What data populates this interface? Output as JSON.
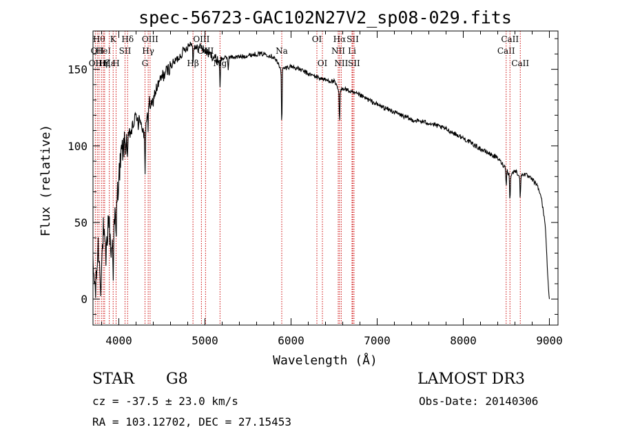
{
  "chart_data": {
    "type": "line",
    "title": "spec-56723-GAC102N27V2_sp08-029.fits",
    "xlabel": "Wavelength (Å)",
    "ylabel": "Flux (relative)",
    "xlim": [
      3700,
      9100
    ],
    "ylim": [
      -17,
      175
    ],
    "xticks": [
      4000,
      5000,
      6000,
      7000,
      8000,
      9000
    ],
    "yticks": [
      0,
      50,
      100,
      150
    ],
    "line_color": "#000000",
    "marker_color": "#cc0000",
    "spectrum_anchors": {
      "x": [
        3700,
        3730,
        3760,
        3790,
        3820,
        3850,
        3880,
        3910,
        3940,
        3970,
        4000,
        4030,
        4060,
        4100,
        4150,
        4200,
        4250,
        4300,
        4340,
        4380,
        4420,
        4460,
        4500,
        4550,
        4600,
        4650,
        4700,
        4750,
        4800,
        4850,
        4900,
        4950,
        5000,
        5050,
        5100,
        5150,
        5200,
        5300,
        5400,
        5500,
        5600,
        5700,
        5800,
        5890,
        6000,
        6100,
        6200,
        6300,
        6400,
        6500,
        6563,
        6600,
        6700,
        6800,
        6900,
        7000,
        7200,
        7400,
        7600,
        7800,
        8000,
        8200,
        8400,
        8500,
        8542,
        8600,
        8662,
        8700,
        8800,
        8850,
        8900,
        8950,
        8990,
        9000
      ],
      "y": [
        20,
        5,
        35,
        10,
        45,
        25,
        55,
        30,
        45,
        60,
        80,
        95,
        100,
        105,
        110,
        120,
        118,
        105,
        130,
        125,
        135,
        140,
        145,
        148,
        152,
        155,
        158,
        162,
        165,
        168,
        163,
        165,
        162,
        160,
        158,
        156,
        157,
        158,
        158,
        159,
        160,
        160,
        158,
        150,
        152,
        150,
        147,
        145,
        143,
        142,
        135,
        138,
        135,
        133,
        130,
        127,
        122,
        117,
        115,
        111,
        105,
        98,
        92,
        85,
        80,
        84,
        80,
        82,
        78,
        75,
        68,
        50,
        5,
        0
      ]
    },
    "absorption_dips": [
      {
        "x": 3934,
        "depth": 25
      },
      {
        "x": 3968,
        "depth": 25
      },
      {
        "x": 4102,
        "depth": 15
      },
      {
        "x": 4227,
        "depth": 12
      },
      {
        "x": 4305,
        "depth": 30
      },
      {
        "x": 4340,
        "depth": 20
      },
      {
        "x": 4861,
        "depth": 15
      },
      {
        "x": 5175,
        "depth": 20
      },
      {
        "x": 5270,
        "depth": 8
      },
      {
        "x": 5892,
        "depth": 40
      },
      {
        "x": 6563,
        "depth": 22
      },
      {
        "x": 8498,
        "depth": 12
      },
      {
        "x": 8542,
        "depth": 18
      },
      {
        "x": 8662,
        "depth": 16
      }
    ],
    "line_markers": [
      {
        "x": 3727,
        "label": "OII",
        "row": 2
      },
      {
        "x": 3750,
        "label": "OII",
        "row": 1
      },
      {
        "x": 3770,
        "label": "Hθ",
        "row": 0
      },
      {
        "x": 3798,
        "label": "Hη",
        "row": 2
      },
      {
        "x": 3820,
        "label": "HeI",
        "row": 1
      },
      {
        "x": 3835,
        "label": "Hζ",
        "row": 2
      },
      {
        "x": 3889,
        "label": "Hε",
        "row": 2
      },
      {
        "x": 3934,
        "label": "K",
        "row": 0
      },
      {
        "x": 3968,
        "label": "H",
        "row": 2
      },
      {
        "x": 4072,
        "label": "SII",
        "row": 1
      },
      {
        "x": 4102,
        "label": "Hδ",
        "row": 0
      },
      {
        "x": 4304,
        "label": "G",
        "row": 2
      },
      {
        "x": 4341,
        "label": "Hγ",
        "row": 1
      },
      {
        "x": 4363,
        "label": "OIII",
        "row": 0
      },
      {
        "x": 4861,
        "label": "Hβ",
        "row": 2
      },
      {
        "x": 4959,
        "label": "OIII",
        "row": 0
      },
      {
        "x": 5007,
        "label": "OIII",
        "row": 1
      },
      {
        "x": 5175,
        "label": "Mg",
        "row": 2
      },
      {
        "x": 5892,
        "label": "Na",
        "row": 1
      },
      {
        "x": 6300,
        "label": "OI",
        "row": 0
      },
      {
        "x": 6364,
        "label": "OI",
        "row": 2
      },
      {
        "x": 6548,
        "label": "NII",
        "row": 1
      },
      {
        "x": 6563,
        "label": "Hα",
        "row": 0
      },
      {
        "x": 6583,
        "label": "NII",
        "row": 2
      },
      {
        "x": 6708,
        "label": "Li",
        "row": 1
      },
      {
        "x": 6716,
        "label": "SII",
        "row": 0
      },
      {
        "x": 6731,
        "label": "SII",
        "row": 2
      },
      {
        "x": 8498,
        "label": "CaII",
        "row": 1
      },
      {
        "x": 8542,
        "label": "CaII",
        "row": 0
      },
      {
        "x": 8662,
        "label": "CaII",
        "row": 2
      }
    ]
  },
  "info": {
    "object_class": "STAR",
    "subclass": "G8",
    "survey": "LAMOST DR3",
    "cz": "cz = -37.5 ± 23.0 km/s",
    "obs_date": "Obs-Date: 20140306",
    "coords": "RA = 103.12702, DEC =  27.15453"
  }
}
